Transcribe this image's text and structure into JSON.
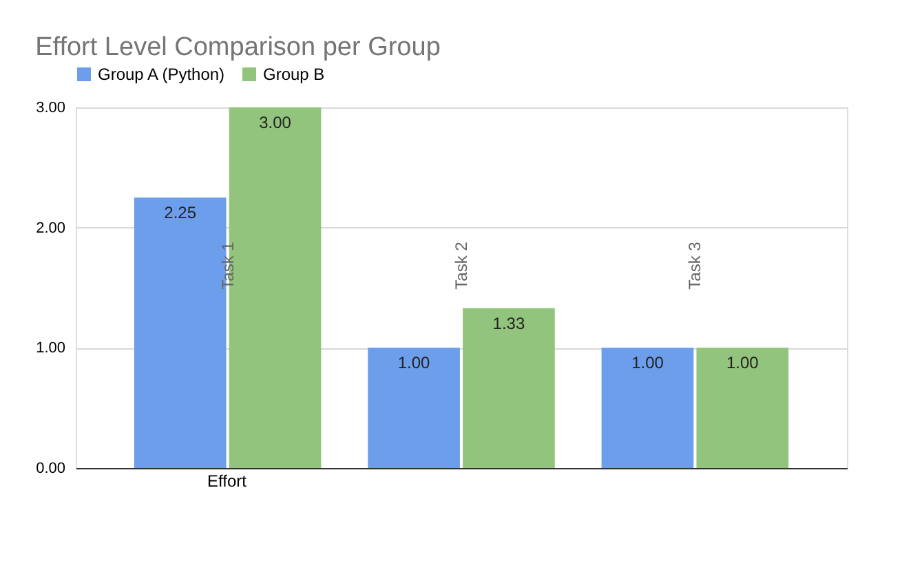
{
  "chart_data": {
    "type": "bar",
    "title": "Effort Level Comparison per Group",
    "xlabel": "Effort",
    "categories": [
      "Task 1",
      "Task 2",
      "Task 3"
    ],
    "series": [
      {
        "name": "Group A (Python)",
        "color": "#6d9eeb",
        "values": [
          2.25,
          1.0,
          1.0
        ],
        "value_labels": [
          "2.25",
          "1.00",
          "1.00"
        ]
      },
      {
        "name": "Group B",
        "color": "#93c47d",
        "values": [
          3.0,
          1.33,
          1.0
        ],
        "value_labels": [
          "3.00",
          "1.33",
          "1.00"
        ]
      }
    ],
    "ylim": [
      0,
      3
    ],
    "yticks": [
      {
        "value": 0,
        "label": "0.00"
      },
      {
        "value": 1,
        "label": "1.00"
      },
      {
        "value": 2,
        "label": "2.00"
      },
      {
        "value": 3,
        "label": "3.00"
      }
    ],
    "grid": "y",
    "legend": "top",
    "tick_labels": "y"
  }
}
